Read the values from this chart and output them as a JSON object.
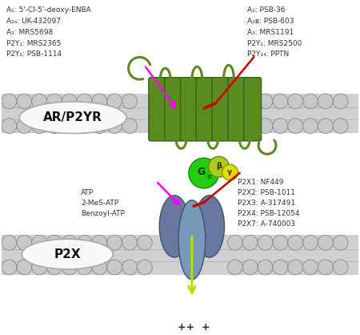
{
  "bg_color": "#ffffff",
  "membrane_color": "#d0d0d0",
  "membrane_border": "#999999",
  "circle_fc": "#c8c8c8",
  "circle_ec": "#888888",
  "gpcr_green": "#5a8a20",
  "gpcr_dark": "#3a6010",
  "p2x_blue": "#6878a0",
  "p2x_dark": "#405070",
  "p2x_light": "#7898b8",
  "galpha_green": "#22cc10",
  "galpha_dark": "#108800",
  "gbeta_fc": "#aacc20",
  "gbeta_ec": "#6a8800",
  "ggamma_fc": "#dddd00",
  "ggamma_ec": "#999900",
  "label_color": "#333333",
  "arrow_agonist": "#ff00ff",
  "arrow_antagonist": "#cc0000",
  "ion_arrow": "#bbdd00",
  "ellipse_fill": "#f8f8f8",
  "ellipse_edge": "#aaaaaa",
  "top_left_text": [
    "A₁: 5'-Cl-5'-deoxy-ENBA",
    "A₂ₐ: UK-432097",
    "A₃: MRS5698",
    "P2Y₁: MRS2365",
    "P2Y₂: PSB-1114"
  ],
  "top_right_text": [
    "A₁: PSB-36",
    "A₂ʙ: PSB-603",
    "A₃: MRS1191",
    "P2Y₁: MRS2500",
    "P2Y₁₄: PPTN"
  ],
  "bottom_left_text": [
    "ATP",
    "2-MeS-ATP",
    "Benzoyl-ATP"
  ],
  "bottom_right_text": [
    "P2X1: NF449",
    "P2X2: PSB-1011",
    "P2X3: A-317491",
    "P2X4: PSB-12054",
    "P2X7: A-740003"
  ],
  "label_ar": "AR/P2YR",
  "label_p2x": "P2X",
  "galpha_sub": "α",
  "gbeta_label": "β",
  "ggamma_label": "γ",
  "plus_label": "++  +"
}
